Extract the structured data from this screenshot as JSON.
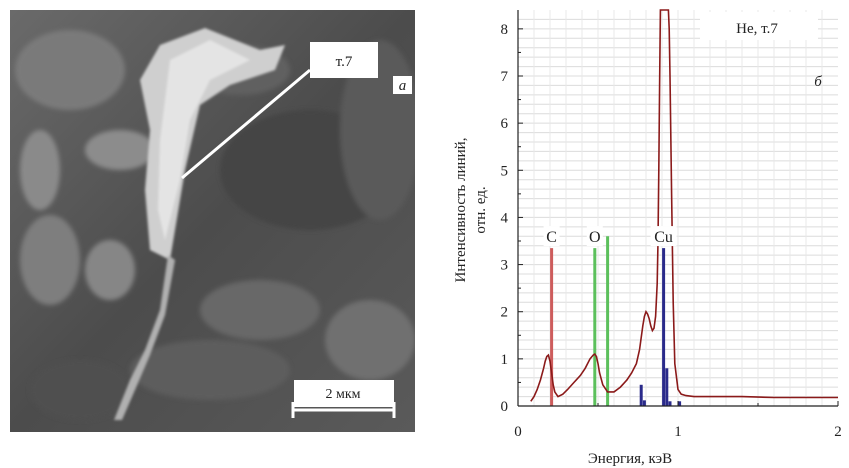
{
  "figure": {
    "sem_panel": {
      "point_label": "т.7",
      "panel_letter": "а",
      "scale_bar_label": "2 мкм"
    },
    "spectrum_panel": {
      "panel_letter": "б",
      "corner_label": "Не, т.7"
    }
  },
  "chart_data": {
    "type": "line",
    "title": "",
    "xlabel": "Энергия, кэВ",
    "ylabel": "Интенсивность линий, отн. ед.",
    "xlim": [
      0,
      2
    ],
    "ylim": [
      0,
      8.4
    ],
    "x_ticks": [
      0,
      1,
      2
    ],
    "y_ticks": [
      0,
      1,
      2,
      3,
      4,
      5,
      6,
      7,
      8
    ],
    "grid": true,
    "spectrum": {
      "color": "#8b1a1a",
      "x": [
        0.08,
        0.1,
        0.12,
        0.14,
        0.16,
        0.17,
        0.18,
        0.19,
        0.2,
        0.21,
        0.22,
        0.23,
        0.25,
        0.28,
        0.31,
        0.35,
        0.39,
        0.42,
        0.45,
        0.47,
        0.48,
        0.49,
        0.5,
        0.51,
        0.53,
        0.56,
        0.6,
        0.64,
        0.68,
        0.71,
        0.74,
        0.76,
        0.78,
        0.79,
        0.8,
        0.81,
        0.82,
        0.83,
        0.84,
        0.85,
        0.86,
        0.87,
        0.875,
        0.88,
        0.885,
        0.89,
        0.9,
        0.91,
        0.92,
        0.925,
        0.93,
        0.94,
        0.945,
        0.95,
        0.96,
        0.97,
        0.98,
        1.0,
        1.02,
        1.05,
        1.1,
        1.2,
        1.4,
        1.6,
        1.8,
        2.0
      ],
      "y": [
        0.1,
        0.2,
        0.35,
        0.55,
        0.8,
        0.95,
        1.05,
        1.08,
        0.95,
        0.7,
        0.45,
        0.3,
        0.2,
        0.25,
        0.35,
        0.5,
        0.65,
        0.8,
        1.0,
        1.08,
        1.1,
        1.05,
        0.9,
        0.7,
        0.45,
        0.3,
        0.3,
        0.4,
        0.55,
        0.7,
        0.9,
        1.2,
        1.7,
        1.9,
        2.0,
        1.95,
        1.85,
        1.7,
        1.6,
        1.65,
        1.9,
        2.6,
        3.5,
        5.0,
        6.8,
        8.4,
        8.4,
        8.4,
        8.4,
        8.4,
        8.4,
        8.4,
        8.0,
        7.0,
        4.5,
        2.2,
        0.9,
        0.35,
        0.25,
        0.22,
        0.2,
        0.2,
        0.2,
        0.18,
        0.18,
        0.18
      ]
    },
    "element_lines": [
      {
        "element": "C",
        "energy": 0.21,
        "height": 3.35,
        "color": "#cd5c5c"
      },
      {
        "element": "O",
        "energy": 0.48,
        "height": 3.35,
        "color": "#5cc05c"
      },
      {
        "element": "Cu",
        "energy": 0.91,
        "height": 3.35,
        "color": "#2a2a8a"
      }
    ],
    "minor_lines": [
      {
        "energy": 0.56,
        "height": 3.6,
        "color": "#5cc05c"
      },
      {
        "energy": 0.77,
        "height": 0.45,
        "color": "#2a2a8a"
      },
      {
        "energy": 0.79,
        "height": 0.12,
        "color": "#2a2a8a"
      },
      {
        "energy": 0.93,
        "height": 0.8,
        "color": "#2a2a8a"
      },
      {
        "energy": 0.95,
        "height": 0.1,
        "color": "#2a2a8a"
      },
      {
        "energy": 1.01,
        "height": 0.1,
        "color": "#2a2a8a"
      }
    ]
  }
}
